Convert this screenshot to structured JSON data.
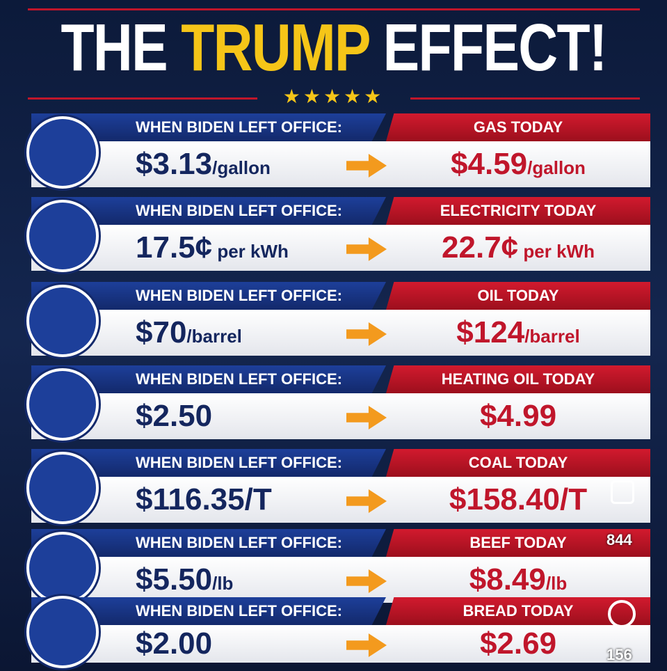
{
  "header": {
    "title_parts": [
      "THE",
      "TRUMP",
      "EFFECT!"
    ]
  },
  "rows": [
    {
      "left_label": "WHEN BIDEN LEFT OFFICE:",
      "left_value": "$3.13",
      "left_unit": "/gallon",
      "right_label": "GAS TODAY",
      "right_value": "$4.59",
      "right_unit": "/gallon"
    },
    {
      "left_label": "WHEN BIDEN LEFT OFFICE:",
      "left_value": "17.5¢",
      "left_unit": " per kWh",
      "right_label": "ELECTRICITY TODAY",
      "right_value": "22.7¢",
      "right_unit": " per kWh"
    },
    {
      "left_label": "WHEN BIDEN LEFT OFFICE:",
      "left_value": "$70",
      "left_unit": "/barrel",
      "right_label": "OIL TODAY",
      "right_value": "$124",
      "right_unit": "/barrel"
    },
    {
      "left_label": "WHEN BIDEN LEFT OFFICE:",
      "left_value": "$2.50",
      "right_label": "HEATING OIL TODAY",
      "right_value": "$4.99"
    },
    {
      "left_label": "WHEN BIDEN LEFT OFFICE:",
      "left_value": "$116.35/T",
      "right_label": "COAL TODAY",
      "right_value": "$158.40/T"
    },
    {
      "left_label": "WHEN BIDEN LEFT OFFICE:",
      "left_value": "$5.50",
      "left_unit": "/lb",
      "right_label": "BEEF TODAY",
      "right_value": "$8.49",
      "right_unit": "/lb"
    },
    {
      "left_label": "WHEN BIDEN LEFT OFFICE:",
      "left_value": "$2.00",
      "right_label": "BREAD TODAY",
      "right_value": "$2.69"
    }
  ],
  "social": {
    "likes": "844",
    "comments": "156"
  }
}
